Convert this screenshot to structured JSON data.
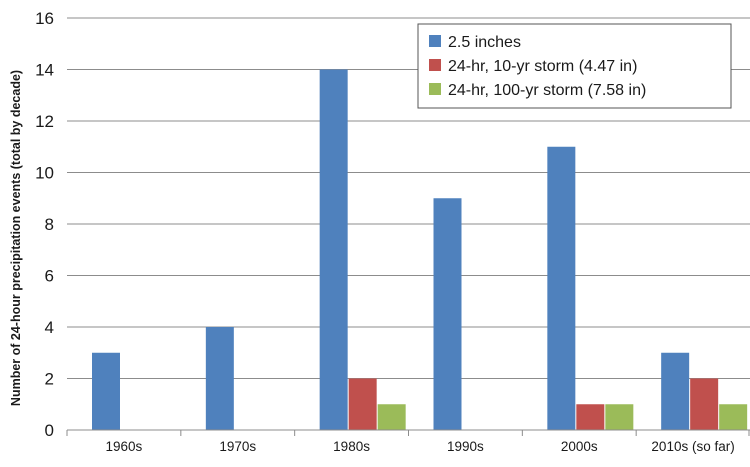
{
  "chart_data": {
    "type": "bar",
    "title": "",
    "xlabel": "",
    "ylabel": "Number of 24-hour precipitation events (total by decade)",
    "ylim": [
      0,
      16
    ],
    "yticks": [
      0,
      2,
      4,
      6,
      8,
      10,
      12,
      14,
      16
    ],
    "grid": true,
    "legend_position": "top-right",
    "categories": [
      "1960s",
      "1970s",
      "1980s",
      "1990s",
      "2000s",
      "2010s (so far)"
    ],
    "series": [
      {
        "name": "2.5 inches",
        "color": "#4f81bd",
        "values": [
          3,
          4,
          14,
          9,
          11,
          3
        ]
      },
      {
        "name": "24-hr, 10-yr storm (4.47 in)",
        "color": "#c0504d",
        "values": [
          0,
          0,
          2,
          0,
          1,
          2
        ]
      },
      {
        "name": "24-hr, 100-yr storm (7.58 in)",
        "color": "#9bbb59",
        "values": [
          0,
          0,
          1,
          0,
          1,
          1
        ]
      }
    ]
  }
}
